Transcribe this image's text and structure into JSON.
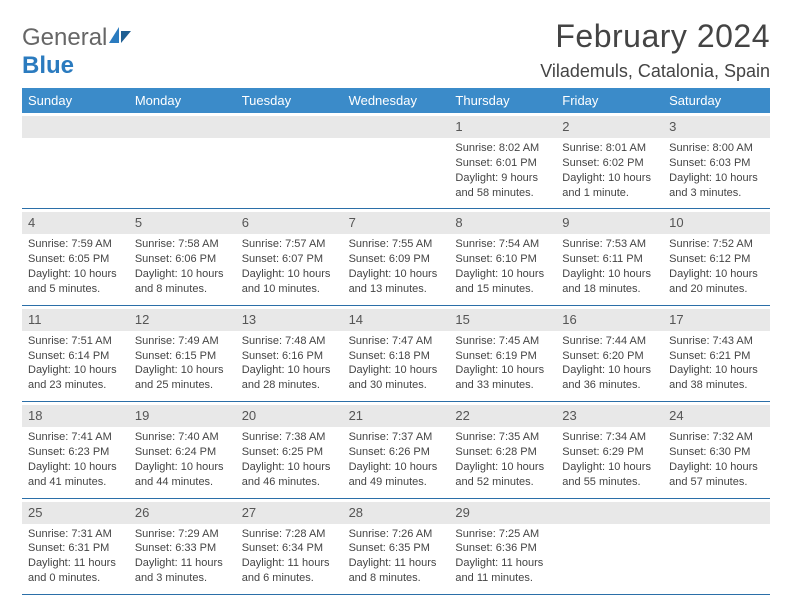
{
  "logo": {
    "word1": "General",
    "word2": "Blue"
  },
  "header": {
    "title": "February 2024",
    "location": "Vilademuls, Catalonia, Spain"
  },
  "colors": {
    "header_bar": "#3b8bc9",
    "divider": "#2b6fa8",
    "daynum_bg": "#e8e8e8",
    "text": "#444444"
  },
  "dow": [
    "Sunday",
    "Monday",
    "Tuesday",
    "Wednesday",
    "Thursday",
    "Friday",
    "Saturday"
  ],
  "weeks": [
    [
      null,
      null,
      null,
      null,
      {
        "n": "1",
        "sr": "Sunrise: 8:02 AM",
        "ss": "Sunset: 6:01 PM",
        "dl1": "Daylight: 9 hours",
        "dl2": "and 58 minutes."
      },
      {
        "n": "2",
        "sr": "Sunrise: 8:01 AM",
        "ss": "Sunset: 6:02 PM",
        "dl1": "Daylight: 10 hours",
        "dl2": "and 1 minute."
      },
      {
        "n": "3",
        "sr": "Sunrise: 8:00 AM",
        "ss": "Sunset: 6:03 PM",
        "dl1": "Daylight: 10 hours",
        "dl2": "and 3 minutes."
      }
    ],
    [
      {
        "n": "4",
        "sr": "Sunrise: 7:59 AM",
        "ss": "Sunset: 6:05 PM",
        "dl1": "Daylight: 10 hours",
        "dl2": "and 5 minutes."
      },
      {
        "n": "5",
        "sr": "Sunrise: 7:58 AM",
        "ss": "Sunset: 6:06 PM",
        "dl1": "Daylight: 10 hours",
        "dl2": "and 8 minutes."
      },
      {
        "n": "6",
        "sr": "Sunrise: 7:57 AM",
        "ss": "Sunset: 6:07 PM",
        "dl1": "Daylight: 10 hours",
        "dl2": "and 10 minutes."
      },
      {
        "n": "7",
        "sr": "Sunrise: 7:55 AM",
        "ss": "Sunset: 6:09 PM",
        "dl1": "Daylight: 10 hours",
        "dl2": "and 13 minutes."
      },
      {
        "n": "8",
        "sr": "Sunrise: 7:54 AM",
        "ss": "Sunset: 6:10 PM",
        "dl1": "Daylight: 10 hours",
        "dl2": "and 15 minutes."
      },
      {
        "n": "9",
        "sr": "Sunrise: 7:53 AM",
        "ss": "Sunset: 6:11 PM",
        "dl1": "Daylight: 10 hours",
        "dl2": "and 18 minutes."
      },
      {
        "n": "10",
        "sr": "Sunrise: 7:52 AM",
        "ss": "Sunset: 6:12 PM",
        "dl1": "Daylight: 10 hours",
        "dl2": "and 20 minutes."
      }
    ],
    [
      {
        "n": "11",
        "sr": "Sunrise: 7:51 AM",
        "ss": "Sunset: 6:14 PM",
        "dl1": "Daylight: 10 hours",
        "dl2": "and 23 minutes."
      },
      {
        "n": "12",
        "sr": "Sunrise: 7:49 AM",
        "ss": "Sunset: 6:15 PM",
        "dl1": "Daylight: 10 hours",
        "dl2": "and 25 minutes."
      },
      {
        "n": "13",
        "sr": "Sunrise: 7:48 AM",
        "ss": "Sunset: 6:16 PM",
        "dl1": "Daylight: 10 hours",
        "dl2": "and 28 minutes."
      },
      {
        "n": "14",
        "sr": "Sunrise: 7:47 AM",
        "ss": "Sunset: 6:18 PM",
        "dl1": "Daylight: 10 hours",
        "dl2": "and 30 minutes."
      },
      {
        "n": "15",
        "sr": "Sunrise: 7:45 AM",
        "ss": "Sunset: 6:19 PM",
        "dl1": "Daylight: 10 hours",
        "dl2": "and 33 minutes."
      },
      {
        "n": "16",
        "sr": "Sunrise: 7:44 AM",
        "ss": "Sunset: 6:20 PM",
        "dl1": "Daylight: 10 hours",
        "dl2": "and 36 minutes."
      },
      {
        "n": "17",
        "sr": "Sunrise: 7:43 AM",
        "ss": "Sunset: 6:21 PM",
        "dl1": "Daylight: 10 hours",
        "dl2": "and 38 minutes."
      }
    ],
    [
      {
        "n": "18",
        "sr": "Sunrise: 7:41 AM",
        "ss": "Sunset: 6:23 PM",
        "dl1": "Daylight: 10 hours",
        "dl2": "and 41 minutes."
      },
      {
        "n": "19",
        "sr": "Sunrise: 7:40 AM",
        "ss": "Sunset: 6:24 PM",
        "dl1": "Daylight: 10 hours",
        "dl2": "and 44 minutes."
      },
      {
        "n": "20",
        "sr": "Sunrise: 7:38 AM",
        "ss": "Sunset: 6:25 PM",
        "dl1": "Daylight: 10 hours",
        "dl2": "and 46 minutes."
      },
      {
        "n": "21",
        "sr": "Sunrise: 7:37 AM",
        "ss": "Sunset: 6:26 PM",
        "dl1": "Daylight: 10 hours",
        "dl2": "and 49 minutes."
      },
      {
        "n": "22",
        "sr": "Sunrise: 7:35 AM",
        "ss": "Sunset: 6:28 PM",
        "dl1": "Daylight: 10 hours",
        "dl2": "and 52 minutes."
      },
      {
        "n": "23",
        "sr": "Sunrise: 7:34 AM",
        "ss": "Sunset: 6:29 PM",
        "dl1": "Daylight: 10 hours",
        "dl2": "and 55 minutes."
      },
      {
        "n": "24",
        "sr": "Sunrise: 7:32 AM",
        "ss": "Sunset: 6:30 PM",
        "dl1": "Daylight: 10 hours",
        "dl2": "and 57 minutes."
      }
    ],
    [
      {
        "n": "25",
        "sr": "Sunrise: 7:31 AM",
        "ss": "Sunset: 6:31 PM",
        "dl1": "Daylight: 11 hours",
        "dl2": "and 0 minutes."
      },
      {
        "n": "26",
        "sr": "Sunrise: 7:29 AM",
        "ss": "Sunset: 6:33 PM",
        "dl1": "Daylight: 11 hours",
        "dl2": "and 3 minutes."
      },
      {
        "n": "27",
        "sr": "Sunrise: 7:28 AM",
        "ss": "Sunset: 6:34 PM",
        "dl1": "Daylight: 11 hours",
        "dl2": "and 6 minutes."
      },
      {
        "n": "28",
        "sr": "Sunrise: 7:26 AM",
        "ss": "Sunset: 6:35 PM",
        "dl1": "Daylight: 11 hours",
        "dl2": "and 8 minutes."
      },
      {
        "n": "29",
        "sr": "Sunrise: 7:25 AM",
        "ss": "Sunset: 6:36 PM",
        "dl1": "Daylight: 11 hours",
        "dl2": "and 11 minutes."
      },
      null,
      null
    ]
  ]
}
